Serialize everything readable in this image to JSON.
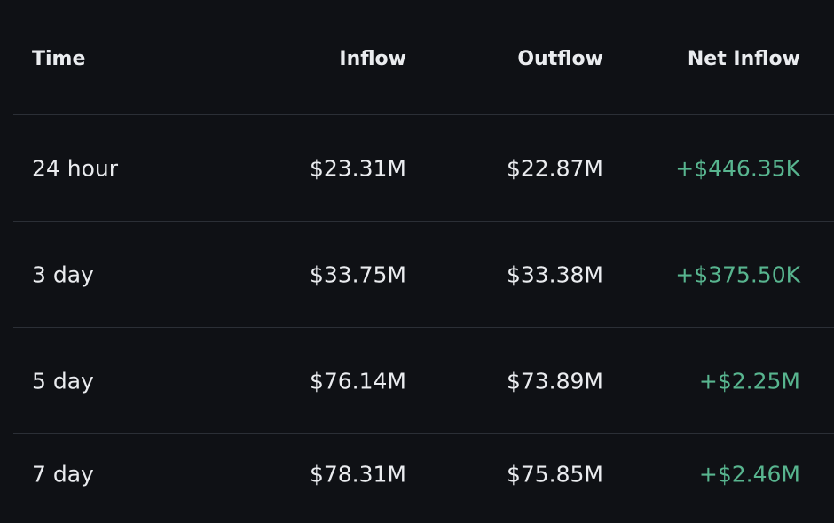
{
  "columns": {
    "time": "Time",
    "inflow": "Inflow",
    "outflow": "Outflow",
    "net_inflow": "Net Inflow"
  },
  "rows": [
    {
      "time": "24 hour",
      "inflow": "$23.31M",
      "outflow": "$22.87M",
      "net_inflow": "+$446.35K"
    },
    {
      "time": "3 day",
      "inflow": "$33.75M",
      "outflow": "$33.38M",
      "net_inflow": "+$375.50K"
    },
    {
      "time": "5 day",
      "inflow": "$76.14M",
      "outflow": "$73.89M",
      "net_inflow": "+$2.25M"
    },
    {
      "time": "7 day",
      "inflow": "$78.31M",
      "outflow": "$75.85M",
      "net_inflow": "+$2.46M"
    }
  ],
  "colors": {
    "background": "#0f1115",
    "text": "#eaecef",
    "positive": "#58b58f",
    "divider": "#2b2f36"
  }
}
